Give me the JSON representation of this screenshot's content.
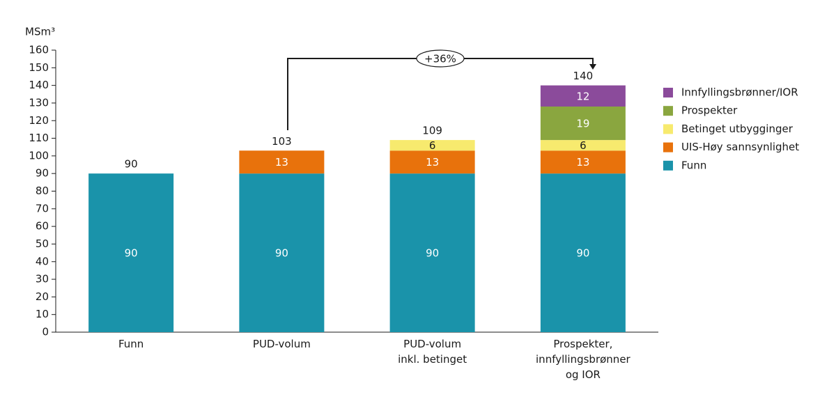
{
  "chart_data": {
    "type": "stacked_bar",
    "y_label": "MSm³",
    "categories": [
      "Funn",
      "PUD-volum",
      "PUD-volum\ninkl. betinget",
      "Prospekter,\ninnfyllingsbrønner\nog IOR"
    ],
    "series": [
      {
        "name": "Funn",
        "color": "#1a93aa",
        "values": [
          90,
          90,
          90,
          90
        ]
      },
      {
        "name": "UIS-Høy sannsynlighet",
        "color": "#e8720c",
        "values": [
          null,
          13,
          13,
          13
        ]
      },
      {
        "name": "Betinget utbygginger",
        "color": "#f7ea6e",
        "values": [
          null,
          null,
          6,
          6
        ]
      },
      {
        "name": "Prospekter",
        "color": "#8aa63f",
        "values": [
          null,
          null,
          null,
          19
        ]
      },
      {
        "name": "Innfyllingsbrønner/IOR",
        "color": "#8b4b9b",
        "values": [
          null,
          null,
          null,
          12
        ]
      }
    ],
    "totals": [
      90,
      103,
      109,
      140
    ],
    "annotation": "+36%",
    "ylim": [
      0,
      160
    ],
    "yticks": [
      0,
      10,
      20,
      30,
      40,
      50,
      60,
      70,
      80,
      90,
      100,
      110,
      120,
      130,
      140,
      150,
      160
    ]
  }
}
